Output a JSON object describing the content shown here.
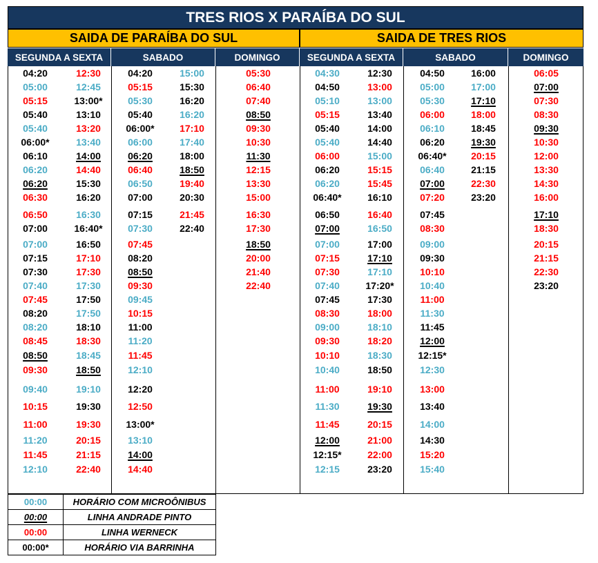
{
  "title": "TRES RIOS X PARAÍBA DO SUL",
  "sections": [
    {
      "label": "SAIDA DE PARAÍBA DO SUL"
    },
    {
      "label": "SAIDA DE TRES RIOS"
    }
  ],
  "column_headers": [
    "SEGUNDA A SEXTA",
    "SABADO",
    "DOMINGO",
    "SEGUNDA A SEXTA",
    "SABADO",
    "DOMINGO"
  ],
  "colors": {
    "black": "#000000",
    "red": "#ff0000",
    "blue": "#4bacc6",
    "header": "#17375e",
    "section": "#ffc000"
  },
  "columns": [
    [
      [
        {
          "t": "04:20",
          "c": "black"
        },
        {
          "t": "05:00",
          "c": "blue"
        },
        {
          "t": "05:15",
          "c": "red"
        },
        {
          "t": "05:40",
          "c": "black"
        },
        {
          "t": "05:40",
          "c": "blue"
        },
        {
          "t": "06:00*",
          "c": "black"
        },
        {
          "t": "06:10",
          "c": "black"
        },
        {
          "t": "06:20",
          "c": "blue"
        },
        {
          "t": "06:20",
          "c": "black",
          "u": true
        },
        {
          "t": "06:30",
          "c": "red"
        },
        {
          "t": "06:50",
          "c": "red"
        },
        {
          "t": "07:00",
          "c": "black"
        },
        {
          "t": "07:00",
          "c": "blue"
        },
        {
          "t": "07:15",
          "c": "black"
        },
        {
          "t": "07:30",
          "c": "black"
        },
        {
          "t": "07:40",
          "c": "blue"
        },
        {
          "t": "07:45",
          "c": "red"
        },
        {
          "t": "08:20",
          "c": "black"
        },
        {
          "t": "08:20",
          "c": "blue"
        },
        {
          "t": "08:45",
          "c": "red"
        },
        {
          "t": "08:50",
          "c": "black",
          "u": true
        },
        {
          "t": "09:30",
          "c": "red"
        },
        {
          "t": "09:40",
          "c": "blue"
        },
        {
          "t": "10:15",
          "c": "red"
        },
        {
          "t": "11:00",
          "c": "red"
        },
        {
          "t": "11:20",
          "c": "blue"
        },
        {
          "t": "11:45",
          "c": "red"
        },
        {
          "t": "12:10",
          "c": "blue"
        }
      ],
      [
        {
          "t": "12:30",
          "c": "red"
        },
        {
          "t": "12:45",
          "c": "blue"
        },
        {
          "t": "13:00*",
          "c": "black"
        },
        {
          "t": "13:10",
          "c": "black"
        },
        {
          "t": "13:20",
          "c": "red"
        },
        {
          "t": "13:40",
          "c": "blue"
        },
        {
          "t": "14:00",
          "c": "black",
          "u": true
        },
        {
          "t": "14:40",
          "c": "red"
        },
        {
          "t": "15:30",
          "c": "black"
        },
        {
          "t": "16:20",
          "c": "black"
        },
        {
          "t": "16:30",
          "c": "blue"
        },
        {
          "t": "16:40*",
          "c": "black"
        },
        {
          "t": "16:50",
          "c": "black"
        },
        {
          "t": "17:10",
          "c": "red"
        },
        {
          "t": "17:30",
          "c": "red"
        },
        {
          "t": "17:30",
          "c": "blue"
        },
        {
          "t": "17:50",
          "c": "black"
        },
        {
          "t": "17:50",
          "c": "blue"
        },
        {
          "t": "18:10",
          "c": "black"
        },
        {
          "t": "18:30",
          "c": "red"
        },
        {
          "t": "18:45",
          "c": "blue"
        },
        {
          "t": "18:50",
          "c": "black",
          "u": true
        },
        {
          "t": "19:10",
          "c": "blue"
        },
        {
          "t": "19:30",
          "c": "black"
        },
        {
          "t": "19:30",
          "c": "red"
        },
        {
          "t": "20:15",
          "c": "red"
        },
        {
          "t": "21:15",
          "c": "red"
        },
        {
          "t": "22:40",
          "c": "red"
        }
      ]
    ],
    [
      [
        {
          "t": "04:20",
          "c": "black"
        },
        {
          "t": "05:15",
          "c": "red"
        },
        {
          "t": "05:30",
          "c": "blue"
        },
        {
          "t": "05:40",
          "c": "black"
        },
        {
          "t": "06:00*",
          "c": "black"
        },
        {
          "t": "06:00",
          "c": "blue"
        },
        {
          "t": "06:20",
          "c": "black",
          "u": true
        },
        {
          "t": "06:40",
          "c": "red"
        },
        {
          "t": "06:50",
          "c": "blue"
        },
        {
          "t": "07:00",
          "c": "black"
        },
        {
          "t": "07:15",
          "c": "black"
        },
        {
          "t": "07:30",
          "c": "blue"
        },
        {
          "t": "07:45",
          "c": "red"
        },
        {
          "t": "08:20",
          "c": "black"
        },
        {
          "t": "08:50",
          "c": "black",
          "u": true
        },
        {
          "t": "09:30",
          "c": "red"
        },
        {
          "t": "09:45",
          "c": "blue"
        },
        {
          "t": "10:15",
          "c": "red"
        },
        {
          "t": "11:00",
          "c": "black"
        },
        {
          "t": "11:20",
          "c": "blue"
        },
        {
          "t": "11:45",
          "c": "red"
        },
        {
          "t": "12:10",
          "c": "blue"
        },
        {
          "t": "12:20",
          "c": "black"
        },
        {
          "t": "12:50",
          "c": "red"
        },
        {
          "t": "13:00*",
          "c": "black"
        },
        {
          "t": "13:10",
          "c": "blue"
        },
        {
          "t": "14:00",
          "c": "black",
          "u": true
        },
        {
          "t": "14:40",
          "c": "red"
        }
      ],
      [
        {
          "t": "15:00",
          "c": "blue"
        },
        {
          "t": "15:30",
          "c": "black"
        },
        {
          "t": "16:20",
          "c": "black"
        },
        {
          "t": "16:20",
          "c": "blue"
        },
        {
          "t": "17:10",
          "c": "red"
        },
        {
          "t": "17:40",
          "c": "blue"
        },
        {
          "t": "18:00",
          "c": "black"
        },
        {
          "t": "18:50",
          "c": "black",
          "u": true
        },
        {
          "t": "19:40",
          "c": "red"
        },
        {
          "t": "20:30",
          "c": "black"
        },
        {
          "t": "21:45",
          "c": "red"
        },
        {
          "t": "22:40",
          "c": "black"
        }
      ]
    ],
    [
      [
        {
          "t": "05:30",
          "c": "red"
        },
        {
          "t": "06:40",
          "c": "red"
        },
        {
          "t": "07:40",
          "c": "red"
        },
        {
          "t": "08:50",
          "c": "black",
          "u": true
        },
        {
          "t": "09:30",
          "c": "red"
        },
        {
          "t": "10:30",
          "c": "red"
        },
        {
          "t": "11:30",
          "c": "black",
          "u": true
        },
        {
          "t": "12:15",
          "c": "red"
        },
        {
          "t": "13:30",
          "c": "red"
        },
        {
          "t": "15:00",
          "c": "red"
        },
        {
          "t": "16:30",
          "c": "red"
        },
        {
          "t": "17:30",
          "c": "red"
        },
        {
          "t": "18:50",
          "c": "black",
          "u": true
        },
        {
          "t": "20:00",
          "c": "red"
        },
        {
          "t": "21:40",
          "c": "red"
        },
        {
          "t": "22:40",
          "c": "red"
        }
      ]
    ],
    [
      [
        {
          "t": "04:30",
          "c": "blue"
        },
        {
          "t": "04:50",
          "c": "black"
        },
        {
          "t": "05:10",
          "c": "blue"
        },
        {
          "t": "05:15",
          "c": "red"
        },
        {
          "t": "05:40",
          "c": "black"
        },
        {
          "t": "05:40",
          "c": "blue"
        },
        {
          "t": "06:00",
          "c": "red"
        },
        {
          "t": "06:20",
          "c": "black"
        },
        {
          "t": "06:20",
          "c": "blue"
        },
        {
          "t": "06:40*",
          "c": "black"
        },
        {
          "t": "06:50",
          "c": "black"
        },
        {
          "t": "07:00",
          "c": "black",
          "u": true
        },
        {
          "t": "07:00",
          "c": "blue"
        },
        {
          "t": "07:15",
          "c": "red"
        },
        {
          "t": "07:30",
          "c": "red"
        },
        {
          "t": "07:40",
          "c": "blue"
        },
        {
          "t": "07:45",
          "c": "black"
        },
        {
          "t": "08:30",
          "c": "red"
        },
        {
          "t": "09:00",
          "c": "blue"
        },
        {
          "t": "09:30",
          "c": "red"
        },
        {
          "t": "10:10",
          "c": "red"
        },
        {
          "t": "10:40",
          "c": "blue"
        },
        {
          "t": "11:00",
          "c": "red"
        },
        {
          "t": "11:30",
          "c": "blue"
        },
        {
          "t": "11:45",
          "c": "red"
        },
        {
          "t": "12:00",
          "c": "black",
          "u": true
        },
        {
          "t": "12:15*",
          "c": "black"
        },
        {
          "t": "12:15",
          "c": "blue"
        }
      ],
      [
        {
          "t": "12:30",
          "c": "black"
        },
        {
          "t": "13:00",
          "c": "red"
        },
        {
          "t": "13:00",
          "c": "blue"
        },
        {
          "t": "13:40",
          "c": "black"
        },
        {
          "t": "14:00",
          "c": "black"
        },
        {
          "t": "14:40",
          "c": "black"
        },
        {
          "t": "15:00",
          "c": "blue"
        },
        {
          "t": "15:15",
          "c": "red"
        },
        {
          "t": "15:45",
          "c": "red"
        },
        {
          "t": "16:10",
          "c": "black"
        },
        {
          "t": "16:40",
          "c": "red"
        },
        {
          "t": "16:50",
          "c": "blue"
        },
        {
          "t": "17:00",
          "c": "black"
        },
        {
          "t": "17:10",
          "c": "black",
          "u": true
        },
        {
          "t": "17:10",
          "c": "blue"
        },
        {
          "t": "17:20*",
          "c": "black"
        },
        {
          "t": "17:30",
          "c": "black"
        },
        {
          "t": "18:00",
          "c": "red"
        },
        {
          "t": "18:10",
          "c": "blue"
        },
        {
          "t": "18:20",
          "c": "red"
        },
        {
          "t": "18:30",
          "c": "blue"
        },
        {
          "t": "18:50",
          "c": "black"
        },
        {
          "t": "19:10",
          "c": "red"
        },
        {
          "t": "19:30",
          "c": "black",
          "u": true
        },
        {
          "t": "20:15",
          "c": "red"
        },
        {
          "t": "21:00",
          "c": "red"
        },
        {
          "t": "22:00",
          "c": "red"
        },
        {
          "t": "23:20",
          "c": "black"
        }
      ]
    ],
    [
      [
        {
          "t": "04:50",
          "c": "black"
        },
        {
          "t": "05:00",
          "c": "blue"
        },
        {
          "t": "05:30",
          "c": "blue"
        },
        {
          "t": "06:00",
          "c": "red"
        },
        {
          "t": "06:10",
          "c": "blue"
        },
        {
          "t": "06:20",
          "c": "black"
        },
        {
          "t": "06:40*",
          "c": "black"
        },
        {
          "t": "06:40",
          "c": "blue"
        },
        {
          "t": "07:00",
          "c": "black",
          "u": true
        },
        {
          "t": "07:20",
          "c": "red"
        },
        {
          "t": "07:45",
          "c": "black"
        },
        {
          "t": "08:30",
          "c": "red"
        },
        {
          "t": "09:00",
          "c": "blue"
        },
        {
          "t": "09:30",
          "c": "black"
        },
        {
          "t": "10:10",
          "c": "red"
        },
        {
          "t": "10:40",
          "c": "blue"
        },
        {
          "t": "11:00",
          "c": "red"
        },
        {
          "t": "11:30",
          "c": "blue"
        },
        {
          "t": "11:45",
          "c": "black"
        },
        {
          "t": "12:00",
          "c": "black",
          "u": true
        },
        {
          "t": "12:15*",
          "c": "black"
        },
        {
          "t": "12:30",
          "c": "blue"
        },
        {
          "t": "13:00",
          "c": "red"
        },
        {
          "t": "13:40",
          "c": "black"
        },
        {
          "t": "14:00",
          "c": "blue"
        },
        {
          "t": "14:30",
          "c": "black"
        },
        {
          "t": "15:20",
          "c": "red"
        },
        {
          "t": "15:40",
          "c": "blue"
        }
      ],
      [
        {
          "t": "16:00",
          "c": "black"
        },
        {
          "t": "17:00",
          "c": "blue"
        },
        {
          "t": "17:10",
          "c": "black",
          "u": true
        },
        {
          "t": "18:00",
          "c": "red"
        },
        {
          "t": "18:45",
          "c": "black"
        },
        {
          "t": "19:30",
          "c": "black",
          "u": true
        },
        {
          "t": "20:15",
          "c": "red"
        },
        {
          "t": "21:15",
          "c": "black"
        },
        {
          "t": "22:30",
          "c": "red"
        },
        {
          "t": "23:20",
          "c": "black"
        }
      ]
    ],
    [
      [
        {
          "t": "06:05",
          "c": "red"
        },
        {
          "t": "07:00",
          "c": "black",
          "u": true
        },
        {
          "t": "07:30",
          "c": "red"
        },
        {
          "t": "08:30",
          "c": "red"
        },
        {
          "t": "09:30",
          "c": "black",
          "u": true
        },
        {
          "t": "10:30",
          "c": "red"
        },
        {
          "t": "12:00",
          "c": "red"
        },
        {
          "t": "13:30",
          "c": "red"
        },
        {
          "t": "14:30",
          "c": "red"
        },
        {
          "t": "16:00",
          "c": "red"
        },
        {
          "t": "17:10",
          "c": "black",
          "u": true
        },
        {
          "t": "18:30",
          "c": "red"
        },
        {
          "t": "20:15",
          "c": "red"
        },
        {
          "t": "21:15",
          "c": "red"
        },
        {
          "t": "22:30",
          "c": "red"
        },
        {
          "t": "23:20",
          "c": "black"
        }
      ]
    ]
  ],
  "legend": [
    {
      "code": "00:00",
      "c": "blue",
      "text": "HORÁRIO COM MICROÔNIBUS"
    },
    {
      "code": "00:00",
      "c": "black",
      "u": true,
      "text": "LINHA ANDRADE PINTO"
    },
    {
      "code": "00:00",
      "c": "red",
      "text": "LINHA WERNECK"
    },
    {
      "code": "00:00*",
      "c": "black",
      "text": "HORÁRIO VIA BARRINHA"
    }
  ]
}
